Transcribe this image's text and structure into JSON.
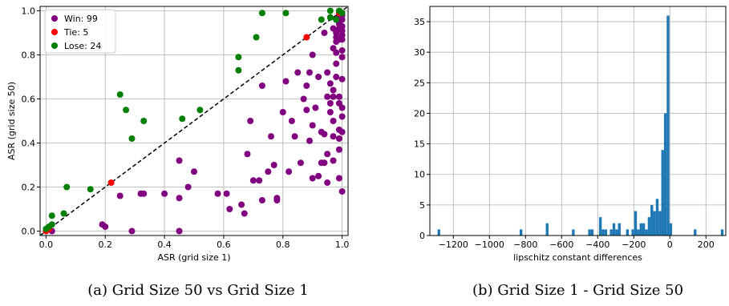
{
  "chart_data": [
    {
      "type": "scatter",
      "caption": "(a) Grid Size 50 vs Grid Size 1",
      "xlabel": "ASR (grid size 1)",
      "ylabel": "ASR (grid size 50)",
      "xlim": [
        -0.02,
        1.02
      ],
      "ylim": [
        -0.02,
        1.02
      ],
      "xticks": [
        0.0,
        0.2,
        0.4,
        0.6,
        0.8,
        1.0
      ],
      "yticks": [
        0.0,
        0.2,
        0.4,
        0.6,
        0.8,
        1.0
      ],
      "xtick_labels": [
        "0.0",
        "0.2",
        "0.4",
        "0.6",
        "0.8",
        "1.0"
      ],
      "ytick_labels": [
        "0.0",
        "0.2",
        "0.4",
        "0.6",
        "0.8",
        "1.0"
      ],
      "grid": true,
      "legend_position": "top-left",
      "diagonal": "dashed y = x",
      "series": [
        {
          "name": "Win: 99",
          "color": "#800080",
          "points": [
            [
              0.02,
              0.0
            ],
            [
              0.19,
              0.03
            ],
            [
              0.2,
              0.02
            ],
            [
              0.25,
              0.16
            ],
            [
              0.29,
              0.0
            ],
            [
              0.32,
              0.17
            ],
            [
              0.33,
              0.17
            ],
            [
              0.4,
              0.17
            ],
            [
              0.45,
              0.32
            ],
            [
              0.45,
              0.0
            ],
            [
              0.45,
              0.15
            ],
            [
              0.48,
              0.2
            ],
            [
              0.5,
              0.27
            ],
            [
              0.58,
              0.17
            ],
            [
              0.61,
              0.17
            ],
            [
              0.62,
              0.1
            ],
            [
              0.66,
              0.12
            ],
            [
              0.67,
              0.08
            ],
            [
              0.68,
              0.35
            ],
            [
              0.69,
              0.5
            ],
            [
              0.7,
              0.23
            ],
            [
              0.72,
              0.23
            ],
            [
              0.73,
              0.14
            ],
            [
              0.73,
              0.66
            ],
            [
              0.75,
              0.27
            ],
            [
              0.76,
              0.43
            ],
            [
              0.77,
              0.3
            ],
            [
              0.78,
              0.15
            ],
            [
              0.78,
              0.14
            ],
            [
              0.8,
              0.54
            ],
            [
              0.81,
              0.68
            ],
            [
              0.82,
              0.27
            ],
            [
              0.83,
              0.5
            ],
            [
              0.84,
              0.43
            ],
            [
              0.85,
              0.72
            ],
            [
              0.86,
              0.31
            ],
            [
              0.87,
              0.6
            ],
            [
              0.88,
              0.66
            ],
            [
              0.88,
              0.55
            ],
            [
              0.89,
              0.41
            ],
            [
              0.89,
              0.72
            ],
            [
              0.9,
              0.24
            ],
            [
              0.9,
              0.48
            ],
            [
              0.9,
              0.8
            ],
            [
              0.91,
              0.56
            ],
            [
              0.92,
              0.25
            ],
            [
              0.92,
              0.7
            ],
            [
              0.93,
              0.45
            ],
            [
              0.93,
              0.31
            ],
            [
              0.94,
              0.44
            ],
            [
              0.94,
              0.31
            ],
            [
              0.94,
              0.9
            ],
            [
              0.95,
              0.22
            ],
            [
              0.95,
              0.35
            ],
            [
              0.95,
              0.72
            ],
            [
              0.95,
              0.61
            ],
            [
              0.96,
              0.67
            ],
            [
              0.96,
              0.58
            ],
            [
              0.96,
              0.54
            ],
            [
              0.96,
              0.97
            ],
            [
              0.97,
              0.5
            ],
            [
              0.97,
              0.64
            ],
            [
              0.97,
              0.83
            ],
            [
              0.97,
              0.92
            ],
            [
              0.97,
              0.43
            ],
            [
              0.97,
              0.32
            ],
            [
              0.97,
              0.61
            ],
            [
              0.98,
              0.81
            ],
            [
              0.98,
              0.96
            ],
            [
              0.98,
              0.76
            ],
            [
              0.98,
              0.88
            ],
            [
              0.98,
              0.9
            ],
            [
              0.98,
              0.86
            ],
            [
              0.98,
              0.7
            ],
            [
              0.99,
              0.94
            ],
            [
              0.99,
              0.95
            ],
            [
              0.99,
              0.97
            ],
            [
              0.99,
              0.92
            ],
            [
              0.99,
              0.58
            ],
            [
              0.99,
              0.24
            ],
            [
              0.99,
              0.37
            ],
            [
              0.99,
              0.42
            ],
            [
              0.99,
              0.87
            ],
            [
              0.99,
              0.99
            ],
            [
              0.99,
              0.61
            ],
            [
              0.99,
              0.46
            ],
            [
              1.0,
              0.98
            ],
            [
              1.0,
              0.96
            ],
            [
              1.0,
              0.91
            ],
            [
              1.0,
              0.89
            ],
            [
              1.0,
              0.87
            ],
            [
              1.0,
              0.82
            ],
            [
              1.0,
              0.79
            ],
            [
              1.0,
              0.69
            ],
            [
              1.0,
              0.56
            ],
            [
              1.0,
              0.52
            ],
            [
              1.0,
              0.45
            ],
            [
              1.0,
              0.18
            ],
            [
              1.0,
              0.93
            ]
          ]
        },
        {
          "name": "Tie: 5",
          "color": "#ff0000",
          "points": [
            [
              0.0,
              0.0
            ],
            [
              0.01,
              0.01
            ],
            [
              0.22,
              0.22
            ],
            [
              0.88,
              0.88
            ],
            [
              0.99,
              0.99
            ]
          ]
        },
        {
          "name": "Lose: 24",
          "color": "#008000",
          "points": [
            [
              0.0,
              0.01
            ],
            [
              0.01,
              0.02
            ],
            [
              0.02,
              0.03
            ],
            [
              0.02,
              0.07
            ],
            [
              0.06,
              0.08
            ],
            [
              0.07,
              0.2
            ],
            [
              0.15,
              0.19
            ],
            [
              0.25,
              0.62
            ],
            [
              0.27,
              0.55
            ],
            [
              0.29,
              0.42
            ],
            [
              0.33,
              0.5
            ],
            [
              0.46,
              0.51
            ],
            [
              0.52,
              0.55
            ],
            [
              0.65,
              0.79
            ],
            [
              0.65,
              0.73
            ],
            [
              0.71,
              0.88
            ],
            [
              0.73,
              0.99
            ],
            [
              0.81,
              0.99
            ],
            [
              0.93,
              0.96
            ],
            [
              0.96,
              1.0
            ],
            [
              0.96,
              0.97
            ],
            [
              0.98,
              0.96
            ],
            [
              0.99,
              1.0
            ],
            [
              1.0,
              0.99
            ]
          ]
        }
      ]
    },
    {
      "type": "bar",
      "subtype": "histogram",
      "caption": "(b) Grid Size 1 - Grid Size 50",
      "xlabel": "lipschitz constant differences",
      "ylabel": "",
      "xlim": [
        -1330,
        310
      ],
      "ylim": [
        0,
        37.5
      ],
      "xticks": [
        -1200,
        -1000,
        -800,
        -600,
        -400,
        -200,
        0,
        200
      ],
      "xtick_labels": [
        "−1200",
        "−1000",
        "−800",
        "−600",
        "−400",
        "−200",
        "0",
        "200"
      ],
      "yticks": [
        0,
        5,
        10,
        15,
        20,
        25,
        30,
        35
      ],
      "ytick_labels": [
        "0",
        "5",
        "10",
        "15",
        "20",
        "25",
        "30",
        "35"
      ],
      "grid": true,
      "color": "#1f77b4",
      "bin_width": 15,
      "bins": [
        {
          "x": -1280,
          "count": 1
        },
        {
          "x": -825,
          "count": 1
        },
        {
          "x": -680,
          "count": 2
        },
        {
          "x": -535,
          "count": 1
        },
        {
          "x": -445,
          "count": 1
        },
        {
          "x": -430,
          "count": 1
        },
        {
          "x": -385,
          "count": 3
        },
        {
          "x": -370,
          "count": 1
        },
        {
          "x": -355,
          "count": 1
        },
        {
          "x": -325,
          "count": 1
        },
        {
          "x": -310,
          "count": 2
        },
        {
          "x": -295,
          "count": 1
        },
        {
          "x": -280,
          "count": 2
        },
        {
          "x": -235,
          "count": 1
        },
        {
          "x": -205,
          "count": 1
        },
        {
          "x": -190,
          "count": 4
        },
        {
          "x": -175,
          "count": 1
        },
        {
          "x": -160,
          "count": 2
        },
        {
          "x": -145,
          "count": 2
        },
        {
          "x": -130,
          "count": 1
        },
        {
          "x": -115,
          "count": 3
        },
        {
          "x": -100,
          "count": 5
        },
        {
          "x": -85,
          "count": 4
        },
        {
          "x": -70,
          "count": 6
        },
        {
          "x": -55,
          "count": 4
        },
        {
          "x": -40,
          "count": 14
        },
        {
          "x": -25,
          "count": 20
        },
        {
          "x": -10,
          "count": 36
        },
        {
          "x": 5,
          "count": 2
        },
        {
          "x": 140,
          "count": 1
        },
        {
          "x": 290,
          "count": 1
        }
      ]
    }
  ]
}
